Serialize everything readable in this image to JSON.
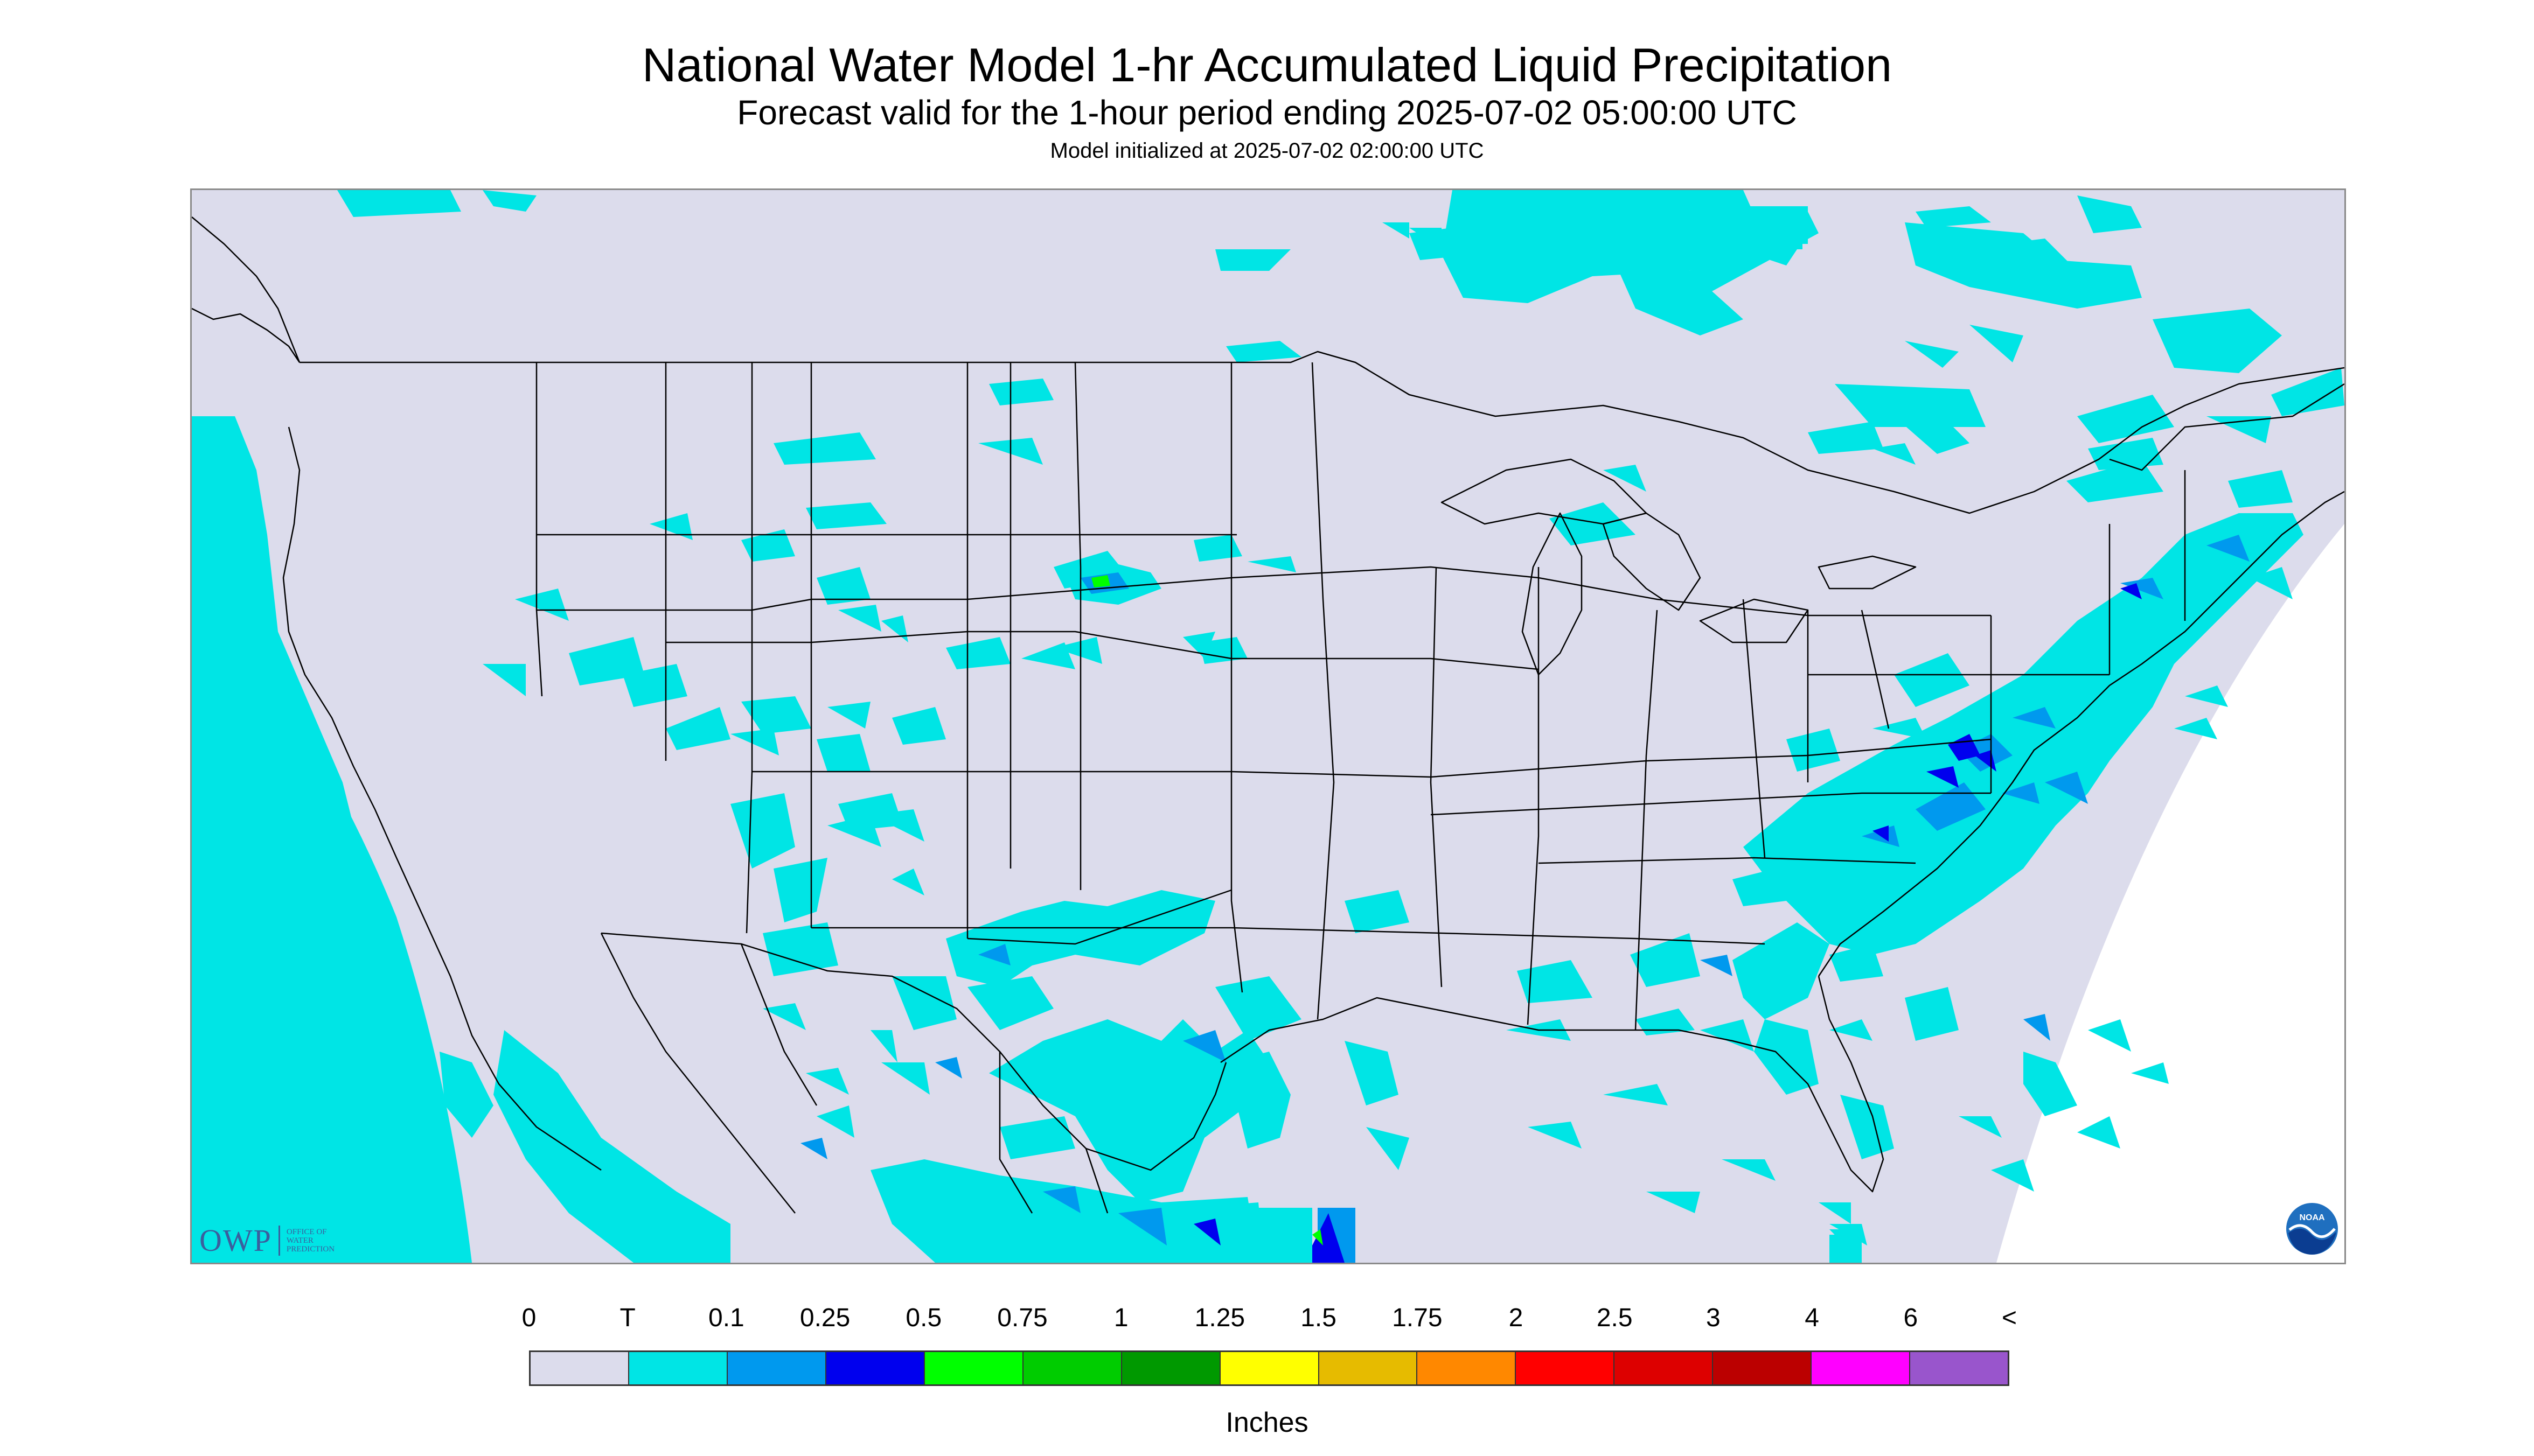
{
  "header": {
    "title": "National Water Model 1-hr Accumulated Liquid Precipitation",
    "subtitle": "Forecast valid for the 1-hour period ending 2025-07-02 05:00:00 UTC",
    "init_line": "Model initialized at 2025-07-02 02:00:00 UTC"
  },
  "logos": {
    "owp_letters": "OWP",
    "owp_line1": "OFFICE OF",
    "owp_line2": "WATER",
    "owp_line3": "PREDICTION",
    "noaa_text": "NOAA"
  },
  "legend": {
    "units": "Inches",
    "labels": [
      "0",
      "T",
      "0.1",
      "0.25",
      "0.5",
      "0.75",
      "1",
      "1.25",
      "1.5",
      "1.75",
      "2",
      "2.5",
      "3",
      "4",
      "6",
      "<"
    ],
    "colors": [
      "#dcdcec",
      "#00e5e5",
      "#0099ee",
      "#0000ee",
      "#00ff00",
      "#00cc00",
      "#009900",
      "#ffff00",
      "#e6bb00",
      "#ff8800",
      "#ff0000",
      "#dd0000",
      "#bb0000",
      "#ff00ff",
      "#9955cc"
    ]
  },
  "colors": {
    "background_land": "#dcdcec",
    "trace": "#00e5e5",
    "light": "#0099ee",
    "moderate": "#0000ee",
    "boundary": "#000000"
  }
}
